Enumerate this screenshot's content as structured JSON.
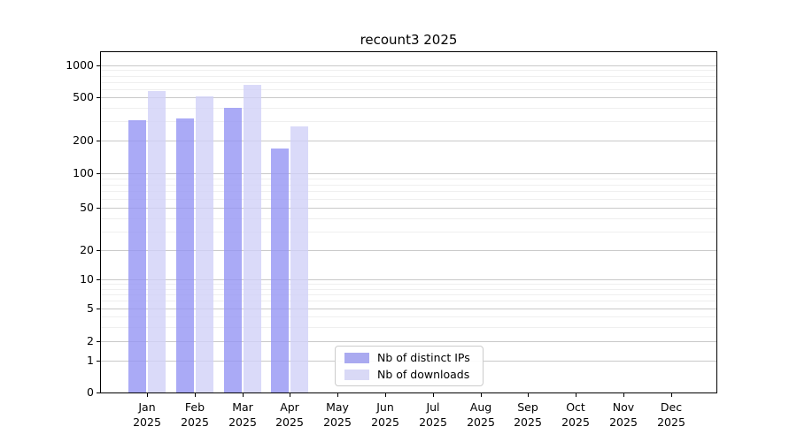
{
  "chart_data": {
    "type": "bar",
    "title": "recount3 2025",
    "categories": [
      "Jan",
      "Feb",
      "Mar",
      "Apr",
      "May",
      "Jun",
      "Jul",
      "Aug",
      "Sep",
      "Oct",
      "Nov",
      "Dec"
    ],
    "x_tick_second_line": "2025",
    "series": [
      {
        "name": "Nb of distinct IPs",
        "color": "#9595f4",
        "swatch_color": "#aaaaf0",
        "opacity": 0.8,
        "values": [
          305,
          318,
          400,
          168,
          0,
          0,
          0,
          0,
          0,
          0,
          0,
          0
        ]
      },
      {
        "name": "Nb of downloads",
        "color": "#d1d1f8",
        "swatch_color": "#d9d9f6",
        "opacity": 0.8,
        "values": [
          570,
          505,
          655,
          272,
          0,
          0,
          0,
          0,
          0,
          0,
          0,
          0
        ]
      }
    ],
    "y_ticks": [
      0,
      1,
      2,
      5,
      10,
      20,
      50,
      100,
      200,
      500,
      1000
    ],
    "y_scale": "symlog",
    "ylim": [
      0,
      1350
    ],
    "xlabel": "",
    "ylabel": "",
    "grid": "horizontal major and log-minor gridlines",
    "legend": {
      "position": "inside-bottom-center",
      "entries": [
        "Nb of distinct IPs",
        "Nb of downloads"
      ]
    }
  }
}
